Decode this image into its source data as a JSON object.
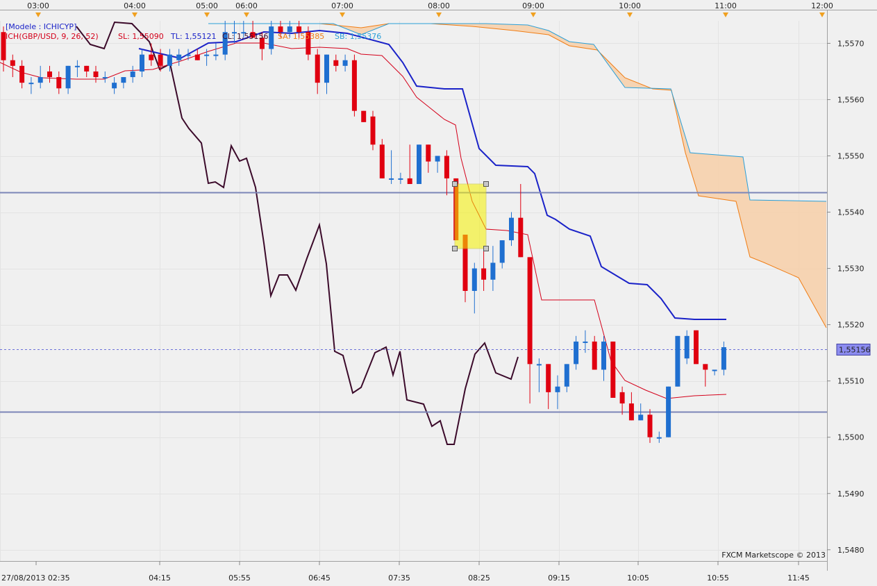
{
  "chart_data": {
    "type": "candlestick",
    "title": "[Modele : ICHICYP]",
    "legend": [
      {
        "text": "ICH(GBP/USD, 9, 26, 52)",
        "color": "#d4001a"
      },
      {
        "text": "SL: 1,55090",
        "color": "#d4001a"
      },
      {
        "text": "TL: 1,55121",
        "color": "#1a22c8"
      },
      {
        "text": "CL: 1,55156",
        "color": "#3b0a2a"
      },
      {
        "text": "SA: 1,55385",
        "color": "#f07d14"
      },
      {
        "text": "SB: 1,55376",
        "color": "#2a9fd8"
      }
    ],
    "watermark": "FXCM Marketscope © 2013",
    "top_axis_labels": [
      "03:00",
      "04:00",
      "05:00",
      "06:00",
      "07:00",
      "08:00",
      "09:00",
      "10:00",
      "11:00",
      "12:00"
    ],
    "bottom_axis_labels": [
      "27/08/2013 02:35",
      "04:15",
      "05:55",
      "06:45",
      "07:35",
      "08:25",
      "09:15",
      "10:05",
      "10:55",
      "11:45"
    ],
    "y_axis_labels": [
      "1,5570",
      "1,5560",
      "1,5550",
      "1,5540",
      "1,5530",
      "1,5520",
      "1,5510",
      "1,5500",
      "1,5490",
      "1,5480"
    ],
    "y_range": [
      1.5478,
      1.5574
    ],
    "current_price_label": "1,55156",
    "current_price": 1.55156,
    "horizontal_lines": [
      1.55435,
      1.55045
    ],
    "selection_box": {
      "from_candle": 40,
      "to_candle": 41,
      "high": 1.5546,
      "low": 1.5535
    },
    "candles": [
      {
        "o": 1.5572,
        "h": 1.5573,
        "l": 1.5565,
        "c": 1.5567
      },
      {
        "o": 1.5567,
        "h": 1.5568,
        "l": 1.5564,
        "c": 1.5566
      },
      {
        "o": 1.5566,
        "h": 1.5567,
        "l": 1.5562,
        "c": 1.5563
      },
      {
        "o": 1.5563,
        "h": 1.5564,
        "l": 1.5561,
        "c": 1.5563
      },
      {
        "o": 1.5563,
        "h": 1.5566,
        "l": 1.5562,
        "c": 1.5564
      },
      {
        "o": 1.5565,
        "h": 1.5566,
        "l": 1.5563,
        "c": 1.5564
      },
      {
        "o": 1.5564,
        "h": 1.5565,
        "l": 1.5561,
        "c": 1.5562
      },
      {
        "o": 1.5562,
        "h": 1.5566,
        "l": 1.5561,
        "c": 1.5566
      },
      {
        "o": 1.5566,
        "h": 1.5567,
        "l": 1.5564,
        "c": 1.5566
      },
      {
        "o": 1.5566,
        "h": 1.5566,
        "l": 1.5564,
        "c": 1.5565
      },
      {
        "o": 1.5565,
        "h": 1.5566,
        "l": 1.5563,
        "c": 1.5564
      },
      {
        "o": 1.5564,
        "h": 1.5565,
        "l": 1.5563,
        "c": 1.5564
      },
      {
        "o": 1.5562,
        "h": 1.5564,
        "l": 1.5561,
        "c": 1.5563
      },
      {
        "o": 1.5563,
        "h": 1.5564,
        "l": 1.5562,
        "c": 1.5564
      },
      {
        "o": 1.5564,
        "h": 1.5566,
        "l": 1.5563,
        "c": 1.5565
      },
      {
        "o": 1.5565,
        "h": 1.5569,
        "l": 1.5564,
        "c": 1.5568
      },
      {
        "o": 1.5568,
        "h": 1.557,
        "l": 1.5566,
        "c": 1.5567
      },
      {
        "o": 1.5568,
        "h": 1.5569,
        "l": 1.5565,
        "c": 1.5566
      },
      {
        "o": 1.5566,
        "h": 1.5569,
        "l": 1.5565,
        "c": 1.5568
      },
      {
        "o": 1.5567,
        "h": 1.5569,
        "l": 1.5566,
        "c": 1.5568
      },
      {
        "o": 1.5568,
        "h": 1.5569,
        "l": 1.5567,
        "c": 1.5568
      },
      {
        "o": 1.5568,
        "h": 1.5569,
        "l": 1.5567,
        "c": 1.5567
      },
      {
        "o": 1.5568,
        "h": 1.5569,
        "l": 1.5566,
        "c": 1.5568
      },
      {
        "o": 1.5568,
        "h": 1.557,
        "l": 1.5567,
        "c": 1.5568
      },
      {
        "o": 1.5568,
        "h": 1.5574,
        "l": 1.5567,
        "c": 1.5572
      },
      {
        "o": 1.5572,
        "h": 1.5574,
        "l": 1.557,
        "c": 1.5572
      },
      {
        "o": 1.5572,
        "h": 1.5574,
        "l": 1.5571,
        "c": 1.5572
      },
      {
        "o": 1.5572,
        "h": 1.5574,
        "l": 1.5571,
        "c": 1.5571
      },
      {
        "o": 1.5571,
        "h": 1.5572,
        "l": 1.5567,
        "c": 1.5569
      },
      {
        "o": 1.5569,
        "h": 1.5574,
        "l": 1.5568,
        "c": 1.5573
      },
      {
        "o": 1.5573,
        "h": 1.5574,
        "l": 1.5571,
        "c": 1.5572
      },
      {
        "o": 1.5572,
        "h": 1.5574,
        "l": 1.5571,
        "c": 1.5573
      },
      {
        "o": 1.5573,
        "h": 1.5574,
        "l": 1.5571,
        "c": 1.5572
      },
      {
        "o": 1.5572,
        "h": 1.5573,
        "l": 1.5567,
        "c": 1.5568
      },
      {
        "o": 1.5568,
        "h": 1.5569,
        "l": 1.5561,
        "c": 1.5563
      },
      {
        "o": 1.5563,
        "h": 1.5568,
        "l": 1.5561,
        "c": 1.5568
      },
      {
        "o": 1.5567,
        "h": 1.5568,
        "l": 1.5565,
        "c": 1.5566
      },
      {
        "o": 1.5566,
        "h": 1.5568,
        "l": 1.5565,
        "c": 1.5567
      },
      {
        "o": 1.5567,
        "h": 1.5568,
        "l": 1.5557,
        "c": 1.5558
      },
      {
        "o": 1.5558,
        "h": 1.5558,
        "l": 1.5556,
        "c": 1.5556
      }
    ]
  }
}
